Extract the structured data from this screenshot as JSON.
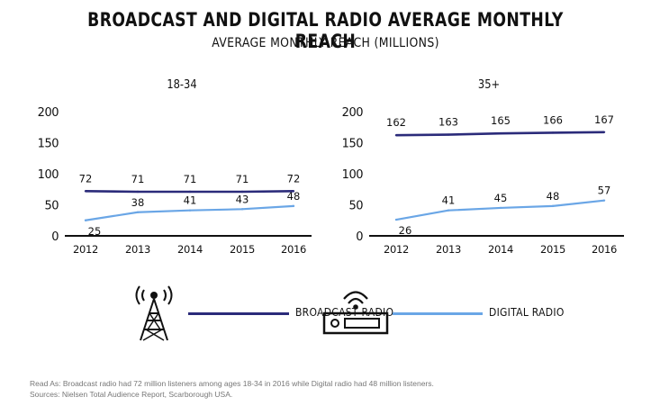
{
  "header": {
    "title": "BROADCAST AND DIGITAL RADIO AVERAGE MONTHLY REACH",
    "subtitle": "AVERAGE MONTHLY REACH (MILLIONS)"
  },
  "colors": {
    "broadcast": "#2b2b7a",
    "digital": "#6aa6e6",
    "axis": "#111111"
  },
  "chart_data": [
    {
      "type": "line",
      "title": "18-34",
      "x": [
        "2012",
        "2013",
        "2014",
        "2015",
        "2016"
      ],
      "ylim": [
        0,
        200
      ],
      "yticks": [
        0,
        50,
        100,
        150,
        200
      ],
      "grid": false,
      "series": [
        {
          "name": "BROADCAST RADIO",
          "values": [
            72,
            71,
            71,
            71,
            72
          ],
          "labels": [
            "72",
            "71",
            "71",
            "71",
            "72"
          ]
        },
        {
          "name": "DIGITAL RADIO",
          "values": [
            25,
            38,
            41,
            43,
            48
          ],
          "labels": [
            "25",
            "38",
            "41",
            "43",
            "48"
          ]
        }
      ]
    },
    {
      "type": "line",
      "title": "35+",
      "x": [
        "2012",
        "2013",
        "2014",
        "2015",
        "2016"
      ],
      "ylim": [
        0,
        200
      ],
      "yticks": [
        0,
        50,
        100,
        150,
        200
      ],
      "grid": false,
      "series": [
        {
          "name": "BROADCAST RADIO",
          "values": [
            162,
            163,
            165,
            166,
            167
          ],
          "labels": [
            "162",
            "163",
            "165",
            "166",
            "167"
          ]
        },
        {
          "name": "DIGITAL RADIO",
          "values": [
            26,
            41,
            45,
            48,
            57
          ],
          "labels": [
            "26",
            "41",
            "45",
            "48",
            "57"
          ]
        }
      ]
    }
  ],
  "legend": {
    "placement": "bottom",
    "broadcast": {
      "label": "BROADCAST RADIO",
      "icon": "radio-tower-icon"
    },
    "digital": {
      "label": "DIGITAL RADIO",
      "icon": "digital-radio-receiver-icon"
    }
  },
  "footnotes": {
    "read_as": "Read As: Broadcast radio had 72 million listeners among ages 18-34 in 2016 while Digital radio had 48  million listeners.",
    "sources": "Sources: Nielsen Total Audience Report, Scarborough USA."
  }
}
